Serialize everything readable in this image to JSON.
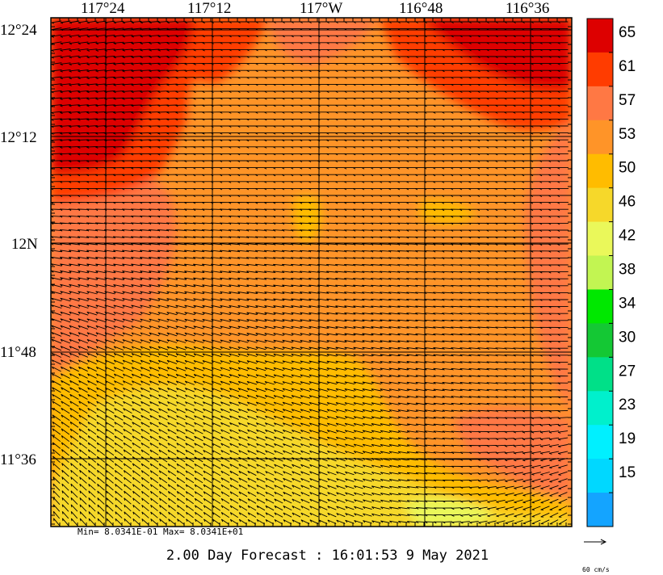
{
  "map": {
    "longitude_labels": [
      "117°24",
      "117°12",
      "117°W",
      "116°48",
      "116°36"
    ],
    "latitude_labels": [
      "12°24",
      "12°12",
      "12N",
      "11°48",
      "11°36"
    ]
  },
  "legend": {
    "values": [
      "65",
      "61",
      "57",
      "53",
      "50",
      "46",
      "42",
      "38",
      "34",
      "30",
      "27",
      "23",
      "19",
      "15"
    ],
    "colors": [
      "#dd0000",
      "#ff3c00",
      "#ff7844",
      "#ff9428",
      "#ffbc00",
      "#f6d82a",
      "#eaf85a",
      "#c2f552",
      "#00e800",
      "#14c834",
      "#00e088",
      "#00f0cc",
      "#00f0ff",
      "#00d8ff",
      "#14a4ff"
    ]
  },
  "stats": {
    "text": "Min= 8.0341E-01   Max= 8.0341E+01"
  },
  "title": {
    "text": "2.00 Day Forecast : 16:01:53   9 May 2021"
  },
  "vector_scale": {
    "label": "60 cm/s"
  }
}
